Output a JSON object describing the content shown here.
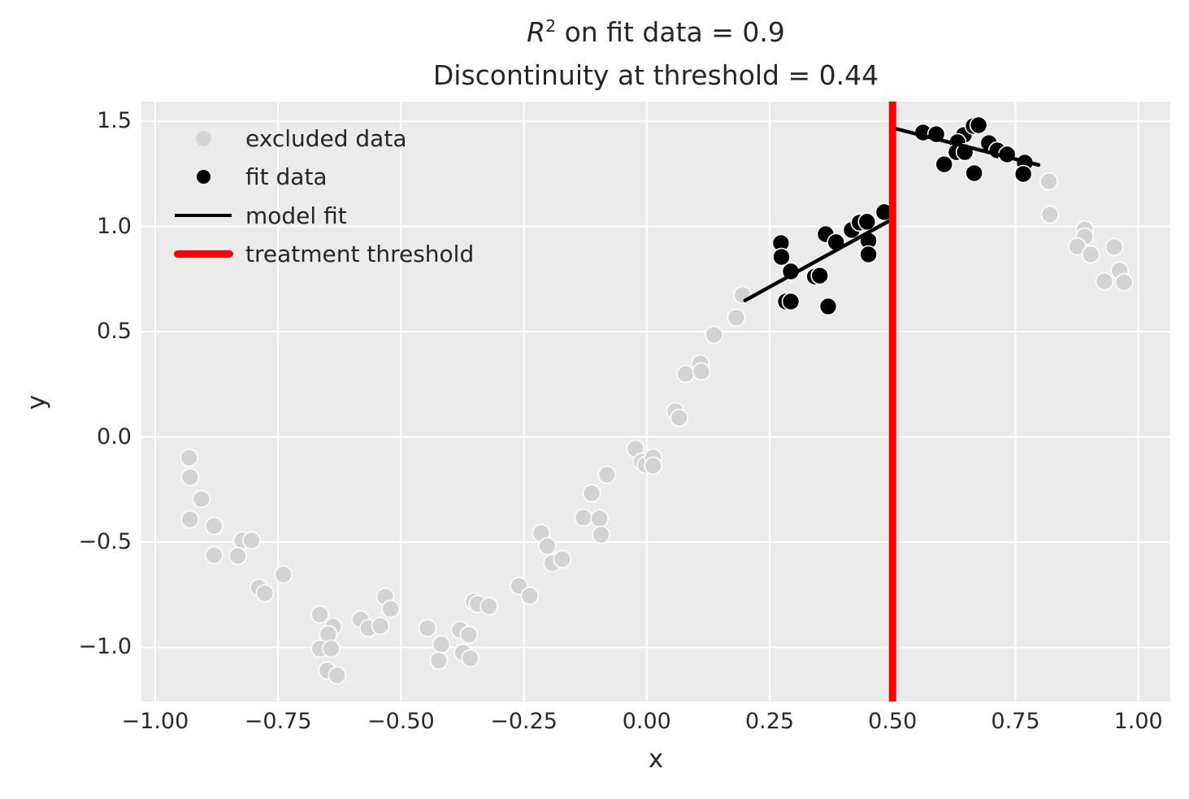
{
  "chart_data": {
    "type": "scatter",
    "title_math": {
      "var": "R",
      "sup": "2",
      "rest": " on fit data = 0.9"
    },
    "title_line2": "Discontinuity at threshold = 0.44",
    "r_squared": 0.9,
    "discontinuity": 0.44,
    "threshold": 0.5,
    "xlabel": "x",
    "ylabel": "y",
    "xlim": [
      -1.028,
      1.065
    ],
    "ylim": [
      -1.257,
      1.593
    ],
    "grid": true,
    "plot_background": "#ebebeb",
    "grid_color": "#ffffff",
    "x_ticks": [
      -1.0,
      -0.75,
      -0.5,
      -0.25,
      0.0,
      0.25,
      0.5,
      0.75,
      1.0
    ],
    "x_tick_labels": [
      "−1.00",
      "−0.75",
      "−0.50",
      "−0.25",
      "0.00",
      "0.25",
      "0.50",
      "0.75",
      "1.00"
    ],
    "y_ticks": [
      -1.0,
      -0.5,
      0.0,
      0.5,
      1.0,
      1.5
    ],
    "y_tick_labels": [
      "−1.0",
      "−0.5",
      "0.0",
      "0.5",
      "1.0",
      "1.5"
    ],
    "legend": {
      "position": "upper left",
      "entries": [
        {
          "label": "excluded data",
          "marker": "dot",
          "color": "#d3d3d3",
          "size": 19
        },
        {
          "label": "fit data",
          "marker": "dot",
          "color": "#000000",
          "size": 17
        },
        {
          "label": "model fit",
          "marker": "line",
          "color": "#000000"
        },
        {
          "label": "treatment threshold",
          "marker": "thick-line",
          "color": "#ff0000"
        }
      ]
    },
    "series": [
      {
        "name": "excluded data",
        "type": "scatter",
        "color": "#d3d3d3",
        "marker_radius": 10.5,
        "edge_color": "#ffffff",
        "points": [
          [
            -0.931,
            -0.099
          ],
          [
            -0.929,
            -0.191
          ],
          [
            -0.906,
            -0.295
          ],
          [
            -0.929,
            -0.392
          ],
          [
            -0.88,
            -0.423
          ],
          [
            -0.823,
            -0.492
          ],
          [
            -0.804,
            -0.492
          ],
          [
            -0.88,
            -0.562
          ],
          [
            -0.832,
            -0.566
          ],
          [
            -0.739,
            -0.654
          ],
          [
            -0.789,
            -0.716
          ],
          [
            -0.777,
            -0.743
          ],
          [
            -0.665,
            -0.844
          ],
          [
            -0.638,
            -0.902
          ],
          [
            -0.648,
            -0.937
          ],
          [
            -0.665,
            -1.006
          ],
          [
            -0.642,
            -1.006
          ],
          [
            -0.65,
            -1.11
          ],
          [
            -0.63,
            -1.133
          ],
          [
            -0.582,
            -0.867
          ],
          [
            -0.566,
            -0.909
          ],
          [
            -0.542,
            -0.898
          ],
          [
            -0.532,
            -0.759
          ],
          [
            -0.521,
            -0.817
          ],
          [
            -0.446,
            -0.909
          ],
          [
            -0.418,
            -0.986
          ],
          [
            -0.423,
            -1.063
          ],
          [
            -0.38,
            -0.917
          ],
          [
            -0.362,
            -0.94
          ],
          [
            -0.374,
            -1.025
          ],
          [
            -0.359,
            -1.052
          ],
          [
            -0.352,
            -0.782
          ],
          [
            -0.344,
            -0.794
          ],
          [
            -0.321,
            -0.805
          ],
          [
            -0.26,
            -0.708
          ],
          [
            -0.238,
            -0.755
          ],
          [
            -0.215,
            -0.457
          ],
          [
            -0.202,
            -0.519
          ],
          [
            -0.192,
            -0.6
          ],
          [
            -0.172,
            -0.581
          ],
          [
            -0.129,
            -0.384
          ],
          [
            -0.096,
            -0.388
          ],
          [
            -0.112,
            -0.268
          ],
          [
            -0.093,
            -0.465
          ],
          [
            -0.081,
            -0.18
          ],
          [
            -0.023,
            -0.056
          ],
          [
            -0.01,
            -0.118
          ],
          [
            -0.002,
            -0.133
          ],
          [
            0.013,
            -0.098
          ],
          [
            0.013,
            -0.137
          ],
          [
            0.058,
            0.122
          ],
          [
            0.066,
            0.091
          ],
          [
            0.079,
            0.299
          ],
          [
            0.109,
            0.349
          ],
          [
            0.111,
            0.311
          ],
          [
            0.137,
            0.485
          ],
          [
            0.182,
            0.566
          ],
          [
            0.195,
            0.674
          ],
          [
            0.818,
            1.214
          ],
          [
            0.82,
            1.056
          ],
          [
            0.891,
            0.986
          ],
          [
            0.891,
            0.952
          ],
          [
            0.876,
            0.905
          ],
          [
            0.903,
            0.867
          ],
          [
            0.951,
            0.902
          ],
          [
            0.962,
            0.79
          ],
          [
            0.931,
            0.739
          ],
          [
            0.971,
            0.734
          ]
        ]
      },
      {
        "name": "fit data",
        "type": "scatter",
        "color": "#000000",
        "marker_radius": 10.5,
        "edge_color": "#ffffff",
        "points": [
          [
            0.273,
            0.921
          ],
          [
            0.274,
            0.855
          ],
          [
            0.293,
            0.786
          ],
          [
            0.364,
            0.963
          ],
          [
            0.385,
            0.925
          ],
          [
            0.417,
            0.983
          ],
          [
            0.433,
            1.018
          ],
          [
            0.448,
            1.022
          ],
          [
            0.483,
            1.068
          ],
          [
            0.451,
            0.932
          ],
          [
            0.451,
            0.867
          ],
          [
            0.342,
            0.762
          ],
          [
            0.352,
            0.766
          ],
          [
            0.283,
            0.643
          ],
          [
            0.293,
            0.643
          ],
          [
            0.369,
            0.62
          ],
          [
            0.562,
            1.446
          ],
          [
            0.589,
            1.438
          ],
          [
            0.645,
            1.434
          ],
          [
            0.665,
            1.477
          ],
          [
            0.675,
            1.481
          ],
          [
            0.632,
            1.4
          ],
          [
            0.63,
            1.353
          ],
          [
            0.647,
            1.353
          ],
          [
            0.696,
            1.396
          ],
          [
            0.713,
            1.361
          ],
          [
            0.733,
            1.342
          ],
          [
            0.605,
            1.295
          ],
          [
            0.666,
            1.253
          ],
          [
            0.769,
            1.303
          ],
          [
            0.766,
            1.249
          ]
        ]
      },
      {
        "name": "model fit",
        "type": "line",
        "color": "#000000",
        "width": 4.5,
        "segments": [
          [
            [
              0.2,
              0.648
            ],
            [
              0.5,
              1.035
            ]
          ],
          [
            [
              0.5,
              1.468
            ],
            [
              0.797,
              1.292
            ]
          ]
        ]
      },
      {
        "name": "treatment threshold",
        "type": "vline",
        "color": "#ff0000",
        "width": 9,
        "x": 0.5
      }
    ]
  }
}
